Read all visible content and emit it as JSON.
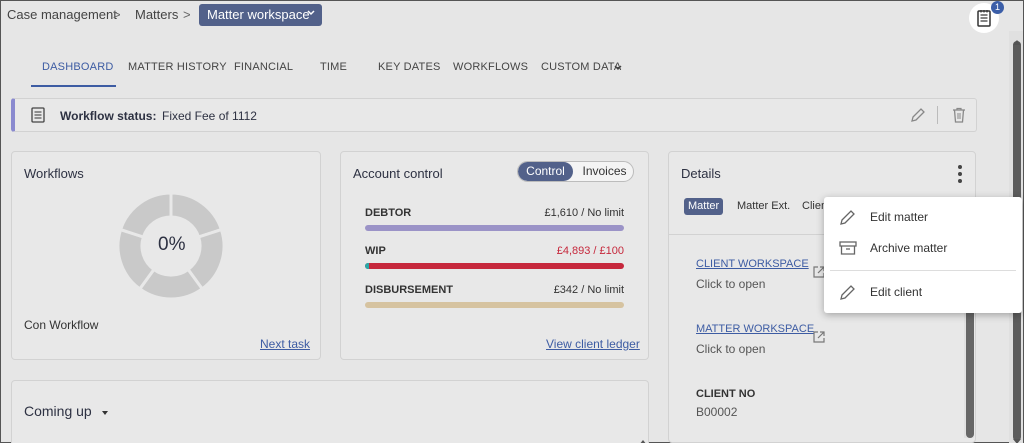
{
  "breadcrumb": {
    "items": [
      "Case management",
      "Matters"
    ],
    "separator": ">",
    "current": "Matter workspace",
    "current_chevron_icon": "chevron-down-icon"
  },
  "notifications": {
    "count": "1",
    "icon": "notepad-icon"
  },
  "tabs": [
    {
      "label": "DASHBOARD",
      "active": true
    },
    {
      "label": "MATTER HISTORY"
    },
    {
      "label": "FINANCIAL"
    },
    {
      "label": "TIME"
    },
    {
      "label": "KEY DATES"
    },
    {
      "label": "WORKFLOWS"
    },
    {
      "label": "CUSTOM DATA"
    }
  ],
  "workflow_status": {
    "label": "Workflow status:",
    "value": "Fixed Fee of 1112"
  },
  "workflows_card": {
    "title": "Workflows",
    "progress_text": "0%",
    "progress_value": 0,
    "workflow_name": "Con Workflow",
    "next_task_link": "Next task"
  },
  "account_control": {
    "title": "Account control",
    "toggle_on": "Control",
    "toggle_off": "Invoices",
    "rows": [
      {
        "label": "DEBTOR",
        "value": "£1,610 / No limit",
        "color": "#9b93c7"
      },
      {
        "label": "WIP",
        "value": "£4,893 / £100",
        "color": "#c6283c",
        "value_color": "#c6283c"
      },
      {
        "label": "DISBURSEMENT",
        "value": "£342 / No limit",
        "color": "#d6c3a0"
      }
    ],
    "ledger_link": "View client ledger"
  },
  "details": {
    "title": "Details",
    "chips": [
      "Matter",
      "Matter Ext.",
      "Clien"
    ],
    "client_workspace": {
      "title": "CLIENT WORKSPACE",
      "sub": "Click to open"
    },
    "matter_workspace": {
      "title": "MATTER WORKSPACE",
      "sub": "Click to open"
    },
    "client_no": {
      "label": "CLIENT NO",
      "value": "B00002"
    }
  },
  "context_menu": {
    "items": [
      {
        "label": "Edit matter",
        "icon": "pencil-icon"
      },
      {
        "label": "Archive matter",
        "icon": "archive-box-icon"
      },
      {
        "label": "Edit client",
        "icon": "pencil-icon"
      }
    ]
  },
  "coming_up": {
    "title": "Coming up"
  },
  "colors": {
    "accent": "#52618a",
    "link": "#3d5ca3",
    "status_border": "#8a8acf"
  }
}
